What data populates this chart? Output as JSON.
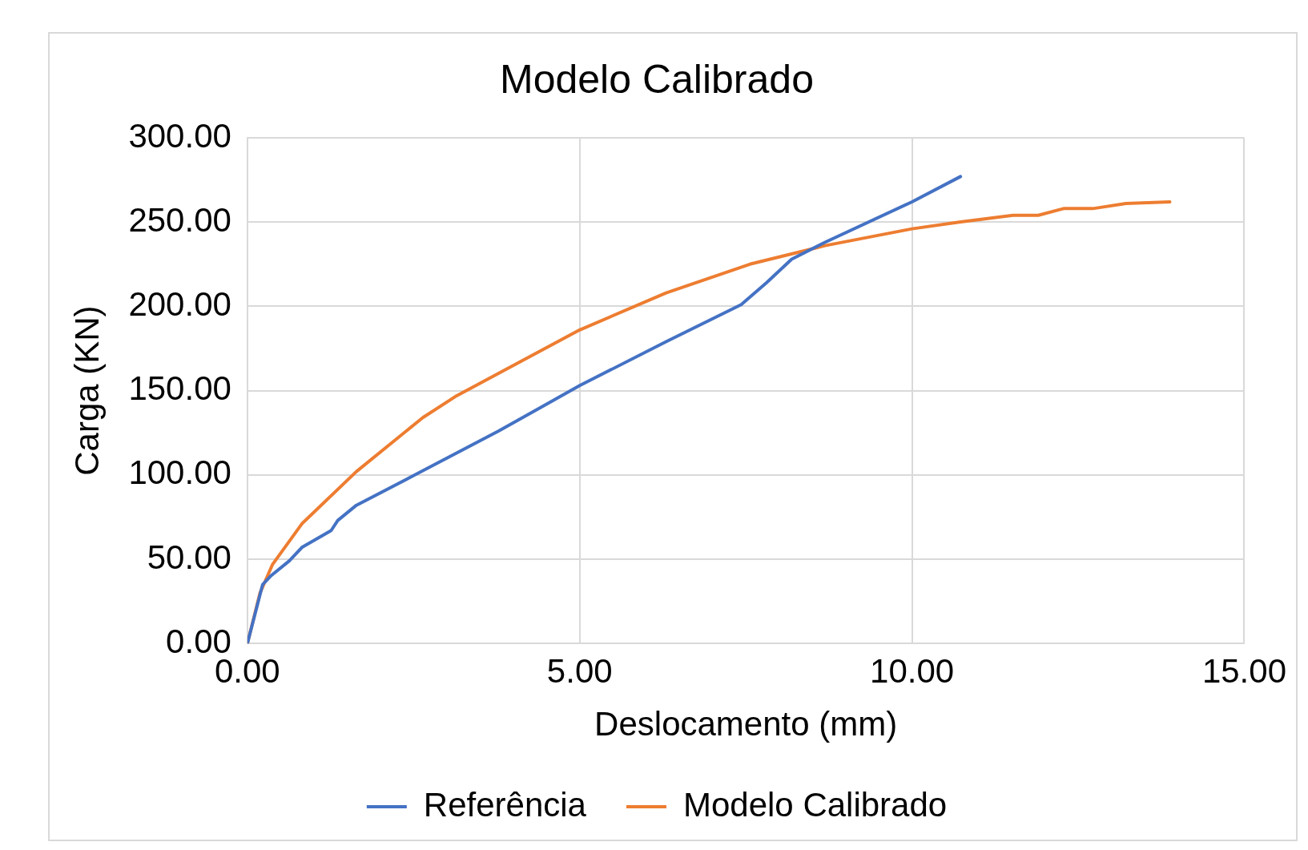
{
  "chart_data": {
    "type": "line",
    "title": "Modelo Calibrado",
    "xlabel": "Deslocamento (mm)",
    "ylabel": "Carga (KN)",
    "xlim": [
      0,
      15
    ],
    "xticks": [
      {
        "value": 0,
        "label": "0.00"
      },
      {
        "value": 5,
        "label": "5.00"
      },
      {
        "value": 10,
        "label": "10.00"
      },
      {
        "value": 15,
        "label": "15.00"
      }
    ],
    "ylim": [
      0,
      300
    ],
    "yticks": [
      {
        "value": 0,
        "label": "0.00"
      },
      {
        "value": 50,
        "label": "50.00"
      },
      {
        "value": 100,
        "label": "100.00"
      },
      {
        "value": 150,
        "label": "150.00"
      },
      {
        "value": 200,
        "label": "200.00"
      },
      {
        "value": 250,
        "label": "250.00"
      },
      {
        "value": 300,
        "label": "300.00"
      }
    ],
    "grid": true,
    "legend": "bottom",
    "marker": "none",
    "line_style": "solid",
    "series": [
      {
        "name": "Referência",
        "color": "#4472c4",
        "x": [
          0,
          0.23,
          0.35,
          0.63,
          0.82,
          1.26,
          1.36,
          1.64,
          2.52,
          3.78,
          5.0,
          6.3,
          7.43,
          7.81,
          8.19,
          8.69,
          10.0,
          10.73
        ],
        "values": [
          0,
          35,
          40,
          49,
          57,
          67,
          73,
          82,
          100,
          126,
          153,
          179,
          201,
          214,
          228,
          238,
          262,
          277
        ]
      },
      {
        "name": "Modelo Calibrado",
        "color": "#ed7d31",
        "x": [
          0,
          0.19,
          0.38,
          0.82,
          1.64,
          2.64,
          3.15,
          5.0,
          6.3,
          7.56,
          8.69,
          10.0,
          10.71,
          11.52,
          11.9,
          12.28,
          12.72,
          13.22,
          13.88
        ],
        "values": [
          0,
          30,
          47,
          71,
          102,
          134,
          147,
          186,
          208,
          225,
          236,
          246,
          250,
          254,
          254,
          258,
          258,
          261,
          262
        ]
      }
    ]
  }
}
